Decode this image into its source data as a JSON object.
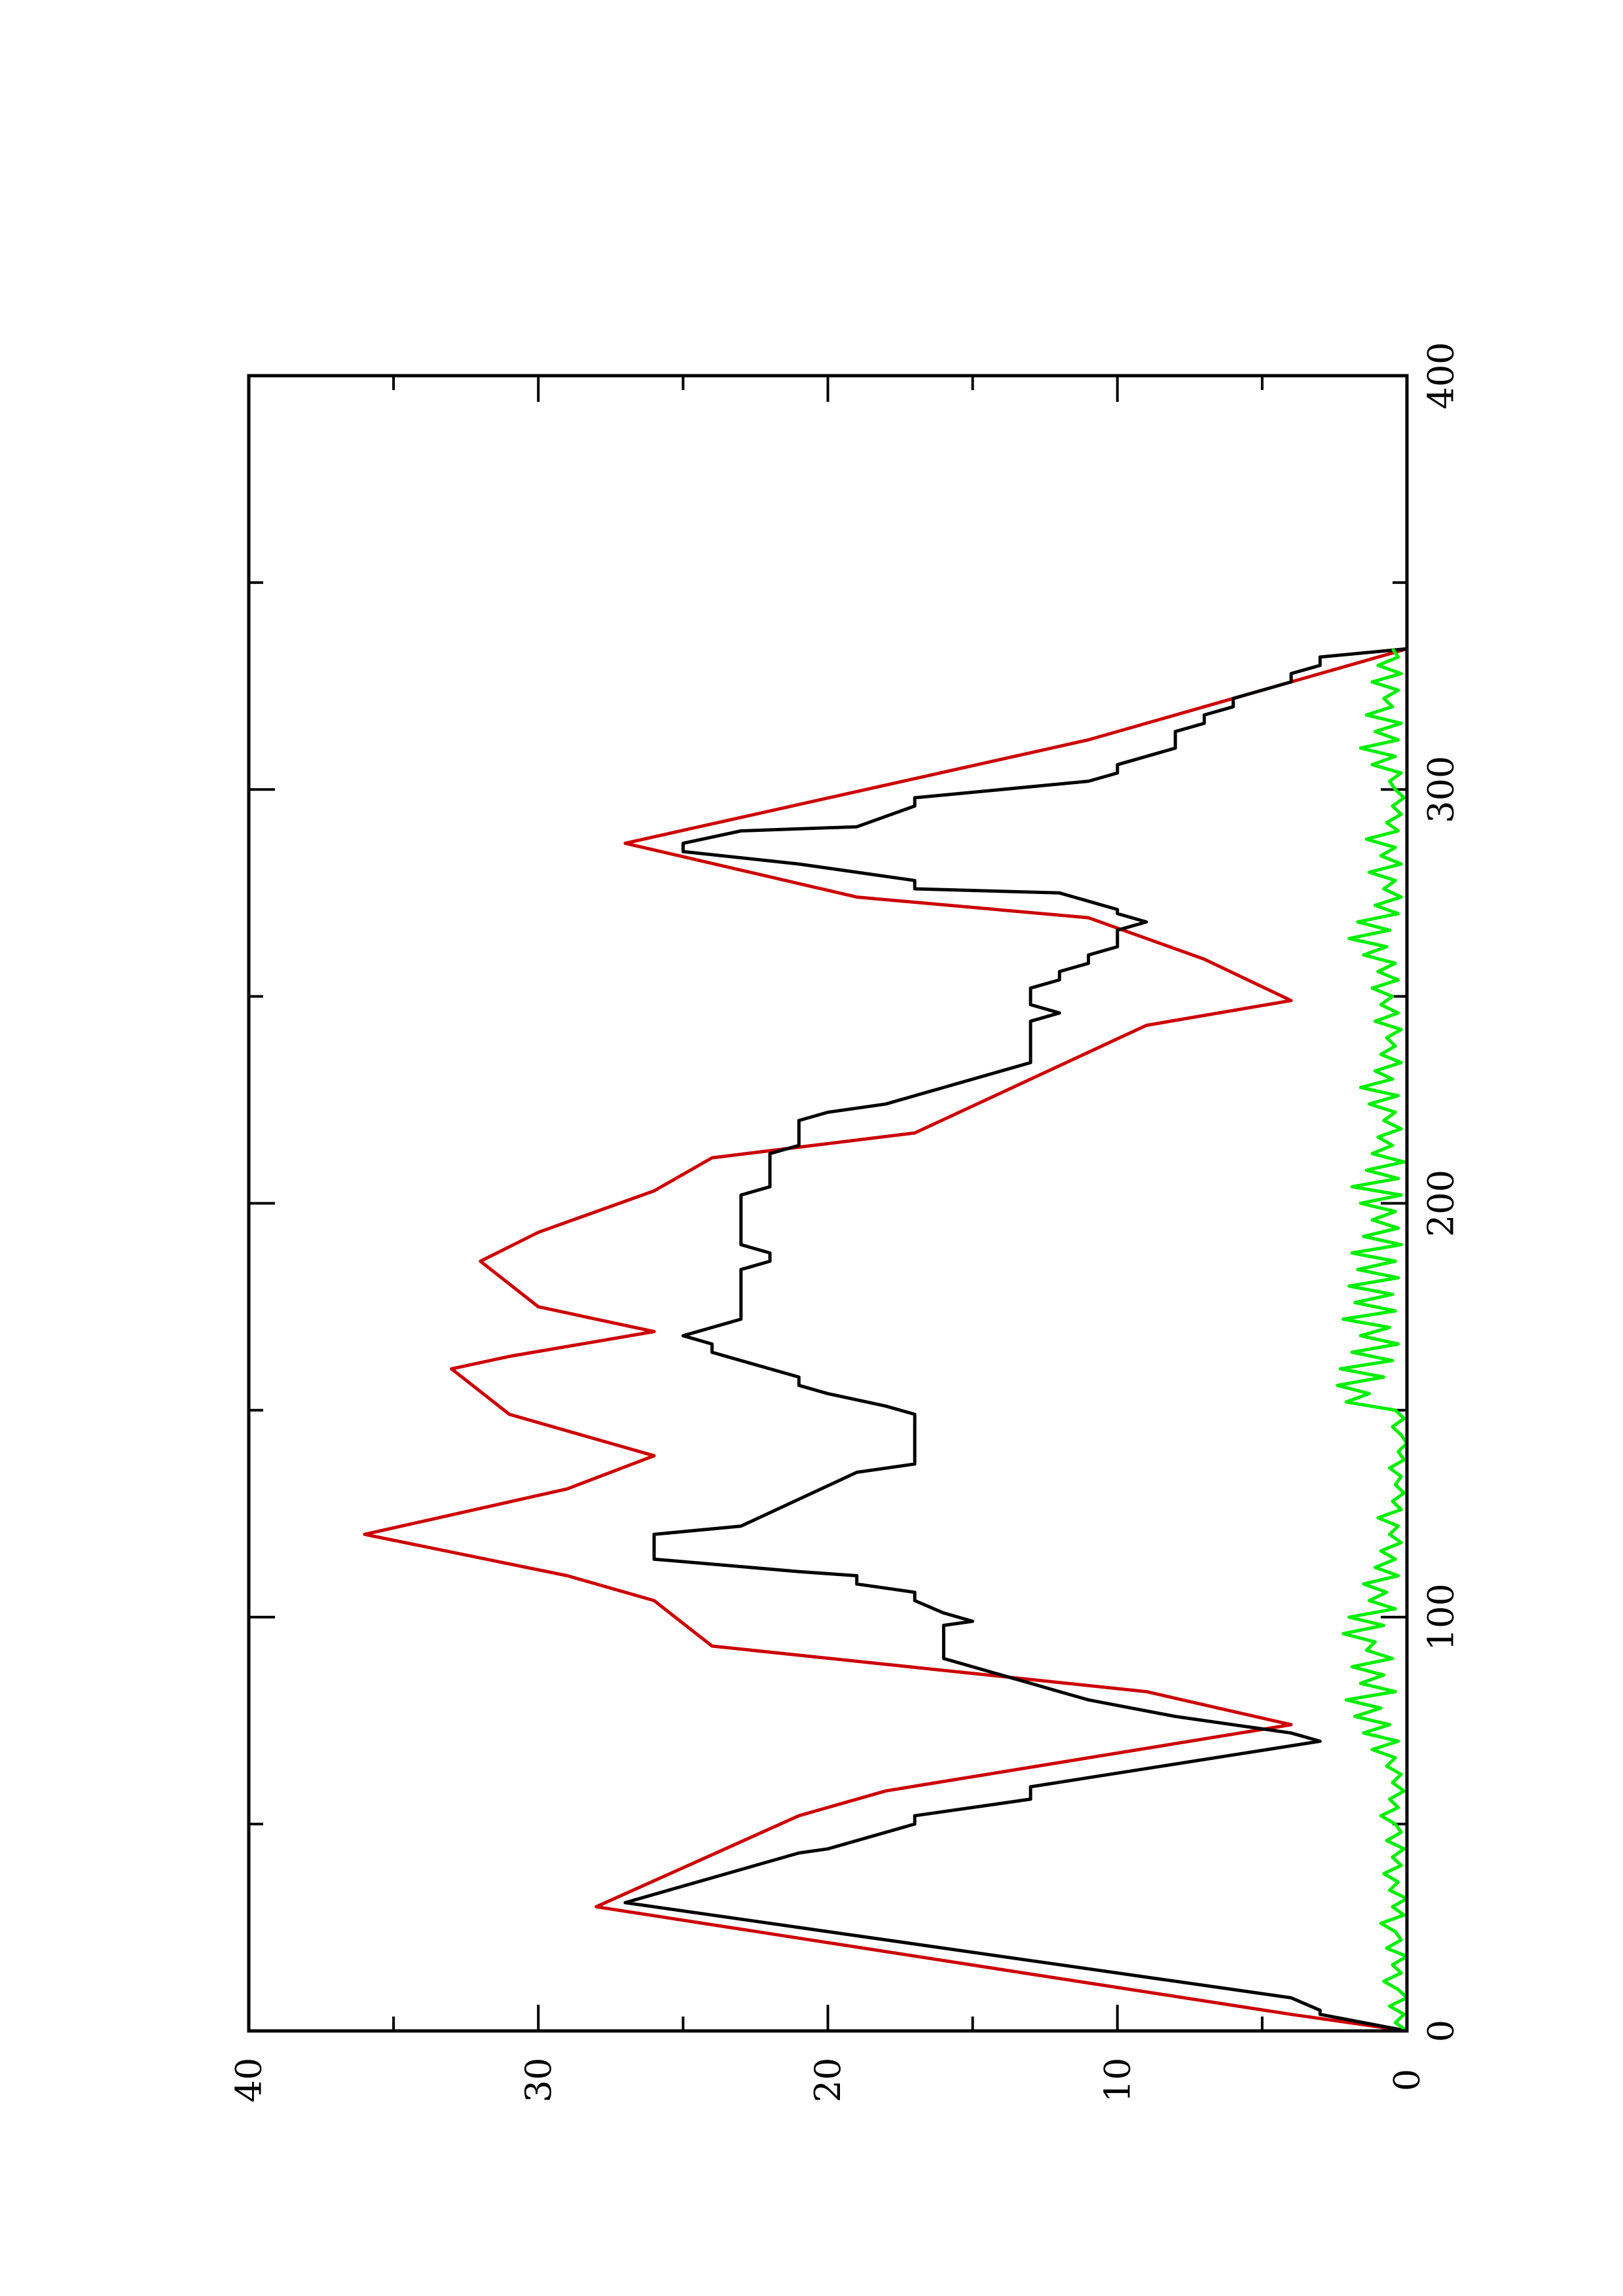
{
  "chart_data": {
    "type": "line",
    "orientation": "rotated-90-counterclockwise",
    "title": "",
    "xlabel": "",
    "ylabel": "",
    "xlim": [
      0,
      400
    ],
    "ylim": [
      0,
      40
    ],
    "x_ticks": [
      0,
      100,
      200,
      300,
      400
    ],
    "x_minor_ticks": [
      50,
      150,
      250,
      350
    ],
    "y_ticks": [
      0,
      10,
      20,
      30,
      40
    ],
    "y_minor_ticks": [
      5,
      15,
      25,
      35
    ],
    "x_tick_labels": [
      "0",
      "100",
      "200",
      "300",
      "400"
    ],
    "y_tick_labels": [
      "0",
      "10",
      "20",
      "30",
      "40"
    ],
    "grid": false,
    "legend": "none",
    "series": [
      {
        "color": "#cc0000",
        "x": [
          0,
          4,
          4,
          30,
          30,
          52,
          52,
          58,
          58,
          74,
          74,
          82,
          82,
          93,
          93,
          104,
          104,
          110,
          110,
          120,
          120,
          131,
          131,
          139,
          139,
          149,
          149,
          160,
          160,
          163,
          163,
          169,
          169,
          175,
          175,
          186,
          186,
          193,
          193,
          203,
          203,
          211,
          211,
          217,
          217,
          243,
          243,
          249,
          249,
          259,
          259,
          269,
          269,
          274,
          274,
          287,
          287,
          312,
          312,
          320,
          320,
          334
        ],
        "y": [
          0,
          4,
          4,
          28,
          28,
          21,
          21,
          18,
          18,
          4,
          4,
          9,
          9,
          24,
          24,
          26,
          26,
          29,
          29,
          36,
          36,
          29,
          29,
          26,
          26,
          31,
          31,
          33,
          33,
          31,
          31,
          26,
          26,
          30,
          30,
          32,
          32,
          30,
          30,
          26,
          26,
          24,
          24,
          17,
          17,
          9,
          9,
          4,
          4,
          7,
          7,
          11,
          11,
          19,
          19,
          27,
          27,
          11,
          11,
          7,
          7,
          0
        ]
      },
      {
        "color": "#000000",
        "x": [
          0,
          4,
          5,
          8,
          31,
          43,
          44,
          50,
          52,
          56,
          59,
          70,
          72,
          76,
          80,
          82,
          84,
          86,
          88,
          90,
          92,
          94,
          96,
          98,
          99,
          101,
          104,
          106,
          108,
          110,
          111,
          114,
          120,
          122,
          135,
          137,
          140,
          147,
          149,
          151,
          154,
          156,
          158,
          160,
          162,
          164,
          166,
          168,
          170,
          172,
          174,
          176,
          178,
          180,
          182,
          184,
          186,
          188,
          190,
          192,
          194,
          196,
          198,
          200,
          202,
          204,
          206,
          208,
          210,
          212,
          214,
          216,
          218,
          220,
          222,
          224,
          226,
          228,
          230,
          232,
          234,
          236,
          238,
          240,
          242,
          244,
          246,
          248,
          250,
          252,
          254,
          256,
          258,
          260,
          262,
          264,
          266,
          268,
          270,
          271,
          275,
          276,
          278,
          282,
          285,
          287,
          290,
          291,
          296,
          298,
          302,
          304,
          306,
          308,
          310,
          312,
          314,
          316,
          318,
          320,
          322,
          324,
          326,
          328,
          330,
          332,
          334
        ],
        "y": [
          0,
          3,
          3,
          4,
          27,
          21,
          20,
          17,
          17,
          13,
          13,
          3,
          4,
          8,
          11,
          12,
          13,
          14,
          15,
          16,
          16,
          16,
          16,
          16,
          15,
          16,
          17,
          17,
          19,
          19,
          21,
          26,
          26,
          23,
          19,
          17,
          17,
          17,
          17,
          18,
          20,
          21,
          21,
          22,
          23,
          24,
          24,
          25,
          24,
          23,
          23,
          23,
          23,
          23,
          23,
          23,
          22,
          22,
          23,
          23,
          23,
          23,
          23,
          23,
          23,
          22,
          22,
          22,
          22,
          22,
          21,
          21,
          21,
          21,
          20,
          18,
          17,
          16,
          15,
          14,
          13,
          13,
          13,
          13,
          13,
          13,
          12,
          13,
          13,
          13,
          12,
          12,
          11,
          11,
          10,
          10,
          10,
          9,
          10,
          10,
          12,
          17,
          17,
          21,
          25,
          25,
          23,
          19,
          17,
          17,
          11,
          10,
          10,
          9,
          8,
          8,
          8,
          7,
          7,
          6,
          6,
          5,
          4,
          4,
          3,
          3,
          0
        ]
      },
      {
        "color": "#00ee00",
        "x": [
          0,
          2,
          4,
          6,
          8,
          10,
          12,
          14,
          16,
          18,
          20,
          22,
          24,
          26,
          28,
          30,
          32,
          34,
          36,
          38,
          40,
          42,
          44,
          46,
          48,
          50,
          52,
          54,
          56,
          58,
          60,
          62,
          64,
          66,
          68,
          70,
          72,
          74,
          76,
          78,
          80,
          82,
          84,
          86,
          88,
          90,
          92,
          94,
          96,
          98,
          100,
          102,
          104,
          106,
          108,
          110,
          112,
          114,
          116,
          118,
          120,
          122,
          124,
          126,
          128,
          130,
          132,
          134,
          136,
          138,
          140,
          142,
          144,
          146,
          148,
          150,
          152,
          154,
          156,
          158,
          160,
          162,
          164,
          166,
          168,
          170,
          172,
          174,
          176,
          178,
          180,
          182,
          184,
          186,
          188,
          190,
          192,
          194,
          196,
          198,
          200,
          202,
          204,
          206,
          208,
          210,
          212,
          214,
          216,
          218,
          220,
          222,
          224,
          226,
          228,
          230,
          232,
          234,
          236,
          238,
          240,
          242,
          244,
          246,
          248,
          250,
          252,
          254,
          256,
          258,
          260,
          262,
          264,
          266,
          268,
          270,
          272,
          274,
          276,
          278,
          280,
          282,
          284,
          286,
          288,
          290,
          292,
          294,
          296,
          298,
          300,
          302,
          304,
          306,
          308,
          310,
          312,
          314,
          316,
          318,
          320,
          322,
          324,
          326,
          328,
          330,
          332,
          334
        ],
        "y": [
          0,
          0.4,
          0.1,
          0.6,
          0,
          0.3,
          0.8,
          0.2,
          0.5,
          0,
          0.7,
          0.2,
          0.4,
          0.9,
          0.1,
          0.5,
          0,
          0.6,
          0.3,
          0.8,
          0.2,
          0.5,
          0.1,
          0.7,
          0.2,
          0.4,
          0.9,
          0.3,
          0.6,
          0.1,
          0.5,
          0.2,
          0.7,
          0.4,
          1.2,
          0.3,
          1.5,
          0.6,
          1.8,
          0.9,
          2.1,
          0.4,
          1.6,
          0.8,
          1.9,
          0.5,
          1.4,
          1.1,
          2.2,
          0.8,
          2.0,
          0.4,
          1.3,
          0.7,
          1.5,
          0.3,
          1.1,
          0.4,
          0.9,
          0.2,
          0.6,
          0.3,
          1.0,
          0.2,
          0.5,
          0.1,
          0.4,
          0.2,
          0.6,
          0.1,
          0.3,
          0,
          0.2,
          0.5,
          0.1,
          0.4,
          2.1,
          1.3,
          2.4,
          0.8,
          2.3,
          0.5,
          1.9,
          0.3,
          1.6,
          0.6,
          2.2,
          0.4,
          1.8,
          0.5,
          2.0,
          0.3,
          1.7,
          0.4,
          1.9,
          0.2,
          1.5,
          0.3,
          1.2,
          0.4,
          1.6,
          0.2,
          1.9,
          0.3,
          1.4,
          0.1,
          1.2,
          0.5,
          1.0,
          0.2,
          0.8,
          0.4,
          1.3,
          0.3,
          1.6,
          0.5,
          1.1,
          0.2,
          0.9,
          0.4,
          0.7,
          0.2,
          1.1,
          0.3,
          0.9,
          0.5,
          1.2,
          0.3,
          1.0,
          0.4,
          1.5,
          0.7,
          2.0,
          0.6,
          1.7,
          0.3,
          1.1,
          0.2,
          0.8,
          0.4,
          1.3,
          0.2,
          0.9,
          0.4,
          1.4,
          0.3,
          0.7,
          0.2,
          0.5,
          0.1,
          0.4,
          0.6,
          0.2,
          1.2,
          0.4,
          1.6,
          0.3,
          1.1,
          0.2,
          1.4,
          0.5,
          0.8,
          0.3,
          1.2,
          0.2,
          1.0,
          0.3,
          0.5
        ]
      }
    ]
  }
}
